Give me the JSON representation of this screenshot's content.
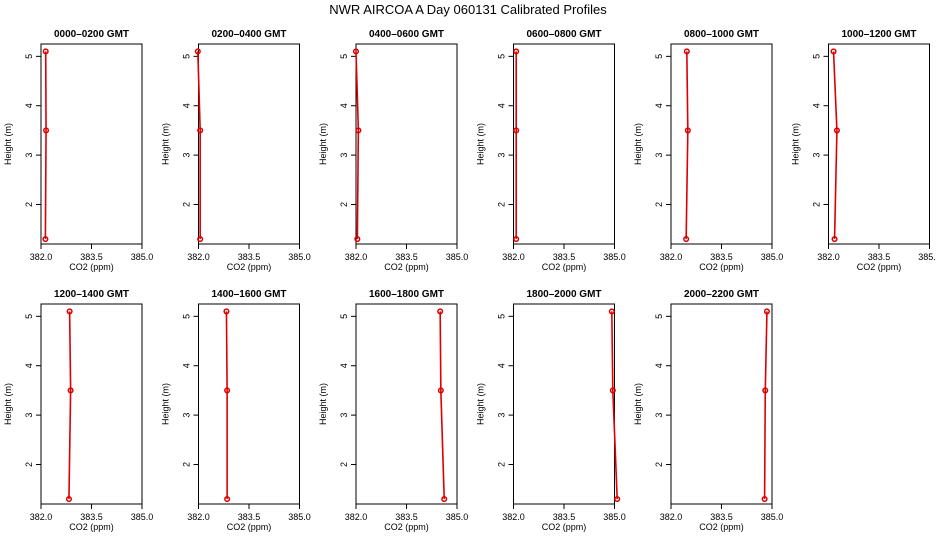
{
  "title": "NWR AIRCOA A  Day 060131  Calibrated Profiles",
  "colors": {
    "series": "#dd0000",
    "axis": "#000000",
    "background": "#ffffff"
  },
  "chart_data": [
    {
      "type": "line",
      "title": "0000–0200 GMT",
      "xlabel": "CO2 (ppm)",
      "ylabel": "Height (m)",
      "xlim": [
        382.0,
        385.0
      ],
      "ylim": [
        1.2,
        5.25
      ],
      "xticks": [
        "382.0",
        "383.5",
        "385.0"
      ],
      "yticks": [
        "2",
        "3",
        "4",
        "5"
      ],
      "x": [
        382.13,
        382.15,
        382.14
      ],
      "y": [
        1.3,
        3.5,
        5.1
      ]
    },
    {
      "type": "line",
      "title": "0200–0400 GMT",
      "xlabel": "CO2 (ppm)",
      "ylabel": "Height (m)",
      "xlim": [
        382.0,
        385.0
      ],
      "ylim": [
        1.2,
        5.25
      ],
      "xticks": [
        "382.0",
        "383.5",
        "385.0"
      ],
      "yticks": [
        "2",
        "3",
        "4",
        "5"
      ],
      "x": [
        382.05,
        382.05,
        381.98
      ],
      "y": [
        1.3,
        3.5,
        5.1
      ]
    },
    {
      "type": "line",
      "title": "0400–0600 GMT",
      "xlabel": "CO2 (ppm)",
      "ylabel": "Height (m)",
      "xlim": [
        382.0,
        385.0
      ],
      "ylim": [
        1.2,
        5.25
      ],
      "xticks": [
        "382.0",
        "383.5",
        "385.0"
      ],
      "yticks": [
        "2",
        "3",
        "4",
        "5"
      ],
      "x": [
        382.04,
        382.07,
        382.0
      ],
      "y": [
        1.3,
        3.5,
        5.1
      ]
    },
    {
      "type": "line",
      "title": "0600–0800 GMT",
      "xlabel": "CO2 (ppm)",
      "ylabel": "Height (m)",
      "xlim": [
        382.0,
        385.0
      ],
      "ylim": [
        1.2,
        5.25
      ],
      "xticks": [
        "382.0",
        "383.5",
        "385.0"
      ],
      "yticks": [
        "2",
        "3",
        "4",
        "5"
      ],
      "x": [
        382.08,
        382.08,
        382.08
      ],
      "y": [
        1.3,
        3.5,
        5.1
      ]
    },
    {
      "type": "line",
      "title": "0800–1000 GMT",
      "xlabel": "CO2 (ppm)",
      "ylabel": "Height (m)",
      "xlim": [
        382.0,
        385.0
      ],
      "ylim": [
        1.2,
        5.25
      ],
      "xticks": [
        "382.0",
        "383.5",
        "385.0"
      ],
      "yticks": [
        "2",
        "3",
        "4",
        "5"
      ],
      "x": [
        382.45,
        382.5,
        382.47
      ],
      "y": [
        1.3,
        3.5,
        5.1
      ]
    },
    {
      "type": "line",
      "title": "1000–1200 GMT",
      "xlabel": "CO2 (ppm)",
      "ylabel": "Height (m)",
      "xlim": [
        382.0,
        385.0
      ],
      "ylim": [
        1.2,
        5.25
      ],
      "xticks": [
        "382.0",
        "383.5",
        "385.0"
      ],
      "yticks": [
        "2",
        "3",
        "4",
        "5"
      ],
      "x": [
        382.18,
        382.25,
        382.15
      ],
      "y": [
        1.3,
        3.5,
        5.1
      ]
    },
    {
      "type": "line",
      "title": "1200–1400 GMT",
      "xlabel": "CO2 (ppm)",
      "ylabel": "Height (m)",
      "xlim": [
        382.0,
        385.0
      ],
      "ylim": [
        1.2,
        5.25
      ],
      "xticks": [
        "382.0",
        "383.5",
        "385.0"
      ],
      "yticks": [
        "2",
        "3",
        "4",
        "5"
      ],
      "x": [
        382.83,
        382.88,
        382.85
      ],
      "y": [
        1.3,
        3.5,
        5.1
      ]
    },
    {
      "type": "line",
      "title": "1400–1600 GMT",
      "xlabel": "CO2 (ppm)",
      "ylabel": "Height (m)",
      "xlim": [
        382.0,
        385.0
      ],
      "ylim": [
        1.2,
        5.25
      ],
      "xticks": [
        "382.0",
        "383.5",
        "385.0"
      ],
      "yticks": [
        "2",
        "3",
        "4",
        "5"
      ],
      "x": [
        382.85,
        382.85,
        382.83
      ],
      "y": [
        1.3,
        3.5,
        5.1
      ]
    },
    {
      "type": "line",
      "title": "1600–1800 GMT",
      "xlabel": "CO2 (ppm)",
      "ylabel": "Height (m)",
      "xlim": [
        382.0,
        385.0
      ],
      "ylim": [
        1.2,
        5.25
      ],
      "xticks": [
        "382.0",
        "383.5",
        "385.0"
      ],
      "yticks": [
        "2",
        "3",
        "4",
        "5"
      ],
      "x": [
        384.62,
        384.52,
        384.5
      ],
      "y": [
        1.3,
        3.5,
        5.1
      ]
    },
    {
      "type": "line",
      "title": "1800–2000 GMT",
      "xlabel": "CO2 (ppm)",
      "ylabel": "Height (m)",
      "xlim": [
        382.0,
        385.0
      ],
      "ylim": [
        1.2,
        5.25
      ],
      "xticks": [
        "382.0",
        "383.5",
        "385.0"
      ],
      "yticks": [
        "2",
        "3",
        "4",
        "5"
      ],
      "x": [
        385.08,
        384.95,
        384.92
      ],
      "y": [
        1.3,
        3.5,
        5.1
      ]
    },
    {
      "type": "line",
      "title": "2000–2200 GMT",
      "xlabel": "CO2 (ppm)",
      "ylabel": "Height (m)",
      "xlim": [
        382.0,
        385.0
      ],
      "ylim": [
        1.2,
        5.25
      ],
      "xticks": [
        "382.0",
        "383.5",
        "385.0"
      ],
      "yticks": [
        "2",
        "3",
        "4",
        "5"
      ],
      "x": [
        384.78,
        384.8,
        384.85
      ],
      "y": [
        1.3,
        3.5,
        5.1
      ]
    }
  ]
}
